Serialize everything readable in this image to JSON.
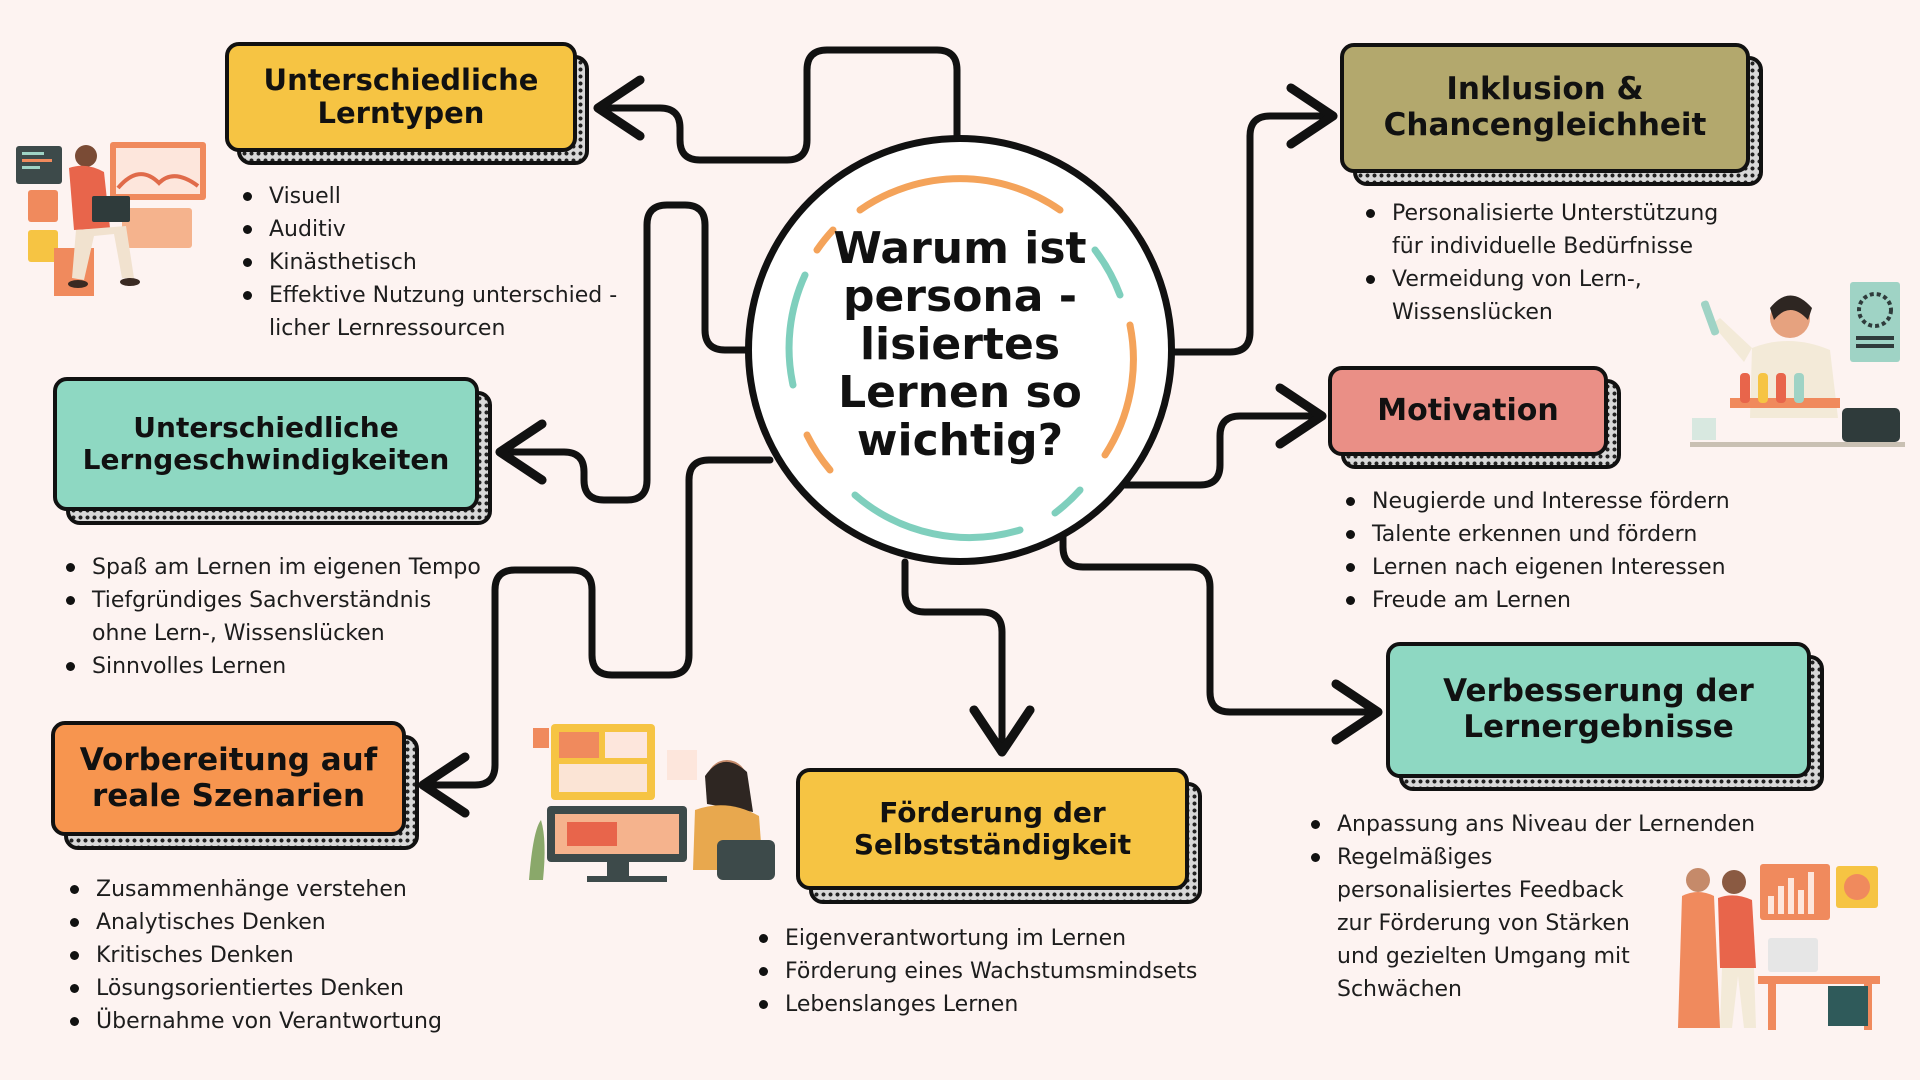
{
  "center": {
    "title_lines": [
      "Warum ist",
      "persona -",
      "lisiertes",
      "Lernen so",
      "wichtig?"
    ]
  },
  "colors": {
    "yellow": "#f6c443",
    "teal": "#8ed8c2",
    "orange": "#f7954f",
    "olive": "#b3a86d",
    "salmon": "#ea8f86",
    "ring_orange": "#f4a35a",
    "ring_teal": "#7fcfbd"
  },
  "nodes": {
    "lerntypen": {
      "title": "Unterschiedliche\nLerntypen",
      "bullets": [
        "Visuell",
        "Auditiv",
        "Kinästhetisch",
        "Effektive Nutzung unterschied -\nlicher Lernressourcen"
      ]
    },
    "geschwindigkeit": {
      "title": "Unterschiedliche\nLerngeschwindigkeiten",
      "bullets": [
        "Spaß am Lernen im eigenen Tempo",
        "Tiefgründiges Sachverständnis\nohne Lern-, Wissenslücken",
        "Sinnvolles Lernen"
      ]
    },
    "szenarien": {
      "title": "Vorbereitung auf\nreale Szenarien",
      "bullets": [
        "Zusammenhänge verstehen",
        "Analytisches Denken",
        "Kritisches Denken",
        "Lösungsorientiertes Denken",
        "Übernahme von Verantwortung"
      ]
    },
    "selbststaendigkeit": {
      "title": "Förderung der\nSelbstständigkeit",
      "bullets": [
        "Eigenverantwortung im Lernen",
        "Förderung eines Wachstumsmindsets",
        "Lebenslanges Lernen"
      ]
    },
    "inklusion": {
      "title": "Inklusion &\nChancengleichheit",
      "bullets": [
        "Personalisierte Unterstützung\nfür individuelle Bedürfnisse",
        "Vermeidung von Lern-,\nWissenslücken"
      ]
    },
    "motivation": {
      "title": "Motivation",
      "bullets": [
        "Neugierde und Interesse fördern",
        "Talente erkennen und fördern",
        "Lernen nach eigenen Interessen",
        "Freude am Lernen"
      ]
    },
    "lernergebnisse": {
      "title": "Verbesserung der\nLernergebnisse",
      "bullets": [
        "Anpassung ans Niveau der Lernenden",
        "Regelmäßiges\npersonalisiertes Feedback\nzur Förderung von Stärken\nund gezielten Umgang mit\nSchwächen"
      ]
    }
  },
  "illustrations": {
    "top_left": "person-with-laptop-icon",
    "top_right": "scientist-with-test-tubes-icon",
    "bottom_center": "person-at-computer-icon",
    "bottom_right": "two-people-at-desk-icon"
  }
}
